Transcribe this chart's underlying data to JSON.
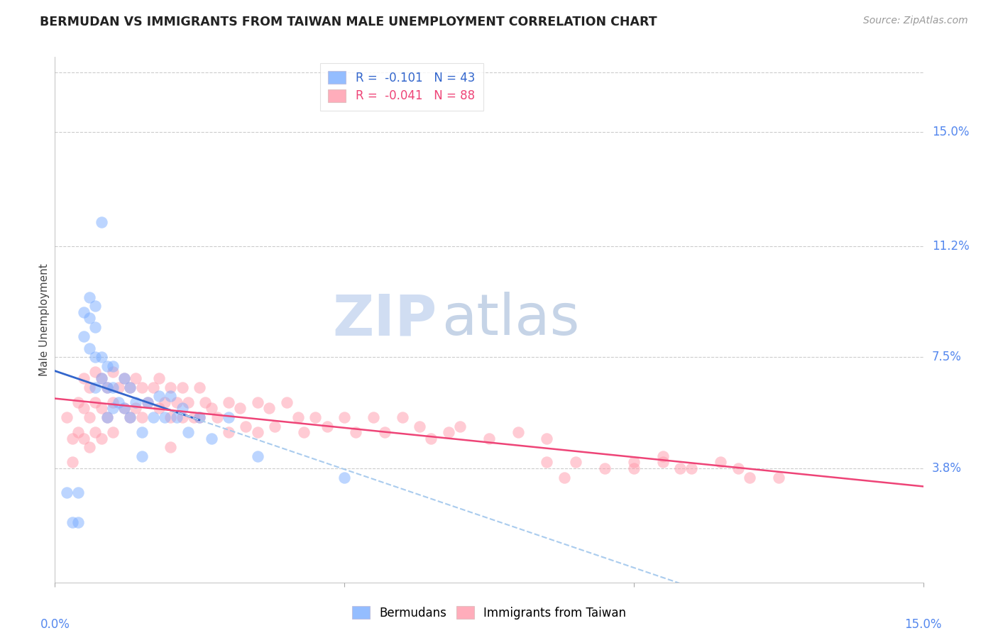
{
  "title": "BERMUDAN VS IMMIGRANTS FROM TAIWAN MALE UNEMPLOYMENT CORRELATION CHART",
  "source": "Source: ZipAtlas.com",
  "ylabel": "Male Unemployment",
  "ytick_labels": [
    "15.0%",
    "11.2%",
    "7.5%",
    "3.8%"
  ],
  "ytick_values": [
    0.15,
    0.112,
    0.075,
    0.038
  ],
  "xmin": 0.0,
  "xmax": 0.15,
  "ymin": 0.0,
  "ymax": 0.175,
  "legend_r1": "R =  -0.101   N = 43",
  "legend_r2": "R =  -0.041   N = 88",
  "blue_color": "#7AADFF",
  "pink_color": "#FF99AA",
  "blue_line_color": "#3366CC",
  "pink_line_color": "#EE4477",
  "dashed_line_color": "#AACCEE",
  "watermark_zip": "ZIP",
  "watermark_atlas": "atlas",
  "blue_points_x": [
    0.002,
    0.003,
    0.004,
    0.004,
    0.005,
    0.005,
    0.006,
    0.006,
    0.006,
    0.007,
    0.007,
    0.007,
    0.007,
    0.008,
    0.008,
    0.008,
    0.009,
    0.009,
    0.009,
    0.01,
    0.01,
    0.01,
    0.011,
    0.012,
    0.012,
    0.013,
    0.013,
    0.014,
    0.015,
    0.015,
    0.016,
    0.017,
    0.018,
    0.019,
    0.02,
    0.021,
    0.022,
    0.023,
    0.025,
    0.027,
    0.03,
    0.035,
    0.05
  ],
  "blue_points_y": [
    0.03,
    0.02,
    0.03,
    0.02,
    0.09,
    0.082,
    0.095,
    0.088,
    0.078,
    0.092,
    0.085,
    0.075,
    0.065,
    0.12,
    0.075,
    0.068,
    0.072,
    0.065,
    0.055,
    0.072,
    0.065,
    0.058,
    0.06,
    0.068,
    0.058,
    0.065,
    0.055,
    0.06,
    0.05,
    0.042,
    0.06,
    0.055,
    0.062,
    0.055,
    0.062,
    0.055,
    0.058,
    0.05,
    0.055,
    0.048,
    0.055,
    0.042,
    0.035
  ],
  "pink_points_x": [
    0.002,
    0.003,
    0.003,
    0.004,
    0.004,
    0.005,
    0.005,
    0.005,
    0.006,
    0.006,
    0.006,
    0.007,
    0.007,
    0.007,
    0.008,
    0.008,
    0.008,
    0.009,
    0.009,
    0.01,
    0.01,
    0.01,
    0.011,
    0.012,
    0.012,
    0.013,
    0.013,
    0.014,
    0.014,
    0.015,
    0.015,
    0.016,
    0.017,
    0.018,
    0.018,
    0.019,
    0.02,
    0.02,
    0.02,
    0.021,
    0.022,
    0.022,
    0.023,
    0.024,
    0.025,
    0.025,
    0.026,
    0.027,
    0.028,
    0.03,
    0.03,
    0.032,
    0.033,
    0.035,
    0.035,
    0.037,
    0.038,
    0.04,
    0.042,
    0.043,
    0.045,
    0.047,
    0.05,
    0.052,
    0.055,
    0.057,
    0.06,
    0.063,
    0.065,
    0.068,
    0.07,
    0.075,
    0.08,
    0.085,
    0.09,
    0.095,
    0.1,
    0.105,
    0.108,
    0.11,
    0.115,
    0.118,
    0.12,
    0.125,
    0.085,
    0.088,
    0.1,
    0.105
  ],
  "pink_points_y": [
    0.055,
    0.048,
    0.04,
    0.06,
    0.05,
    0.068,
    0.058,
    0.048,
    0.065,
    0.055,
    0.045,
    0.07,
    0.06,
    0.05,
    0.068,
    0.058,
    0.048,
    0.065,
    0.055,
    0.07,
    0.06,
    0.05,
    0.065,
    0.068,
    0.058,
    0.065,
    0.055,
    0.068,
    0.058,
    0.065,
    0.055,
    0.06,
    0.065,
    0.068,
    0.058,
    0.06,
    0.065,
    0.055,
    0.045,
    0.06,
    0.065,
    0.055,
    0.06,
    0.055,
    0.065,
    0.055,
    0.06,
    0.058,
    0.055,
    0.06,
    0.05,
    0.058,
    0.052,
    0.06,
    0.05,
    0.058,
    0.052,
    0.06,
    0.055,
    0.05,
    0.055,
    0.052,
    0.055,
    0.05,
    0.055,
    0.05,
    0.055,
    0.052,
    0.048,
    0.05,
    0.052,
    0.048,
    0.05,
    0.048,
    0.04,
    0.038,
    0.04,
    0.042,
    0.038,
    0.038,
    0.04,
    0.038,
    0.035,
    0.035,
    0.04,
    0.035,
    0.038,
    0.04
  ]
}
